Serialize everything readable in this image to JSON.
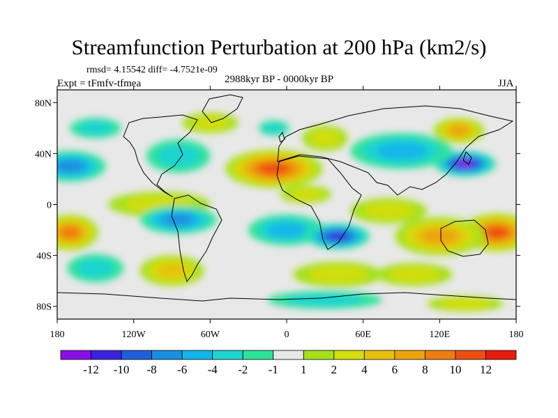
{
  "chart_data": {
    "type": "heatmap",
    "title": "Streamfunction Perturbation at 200 hPa (km2/s)",
    "stats_line": "rmsd= 4.15542 diff= -4.7521e-09",
    "experiment": "Expt = tFmfv-tfmea",
    "period": "2988kyr BP - 0000kyr BP",
    "season": "JJA",
    "units": "km2/s",
    "x_range": [
      -180,
      180
    ],
    "y_range": [
      -90,
      90
    ],
    "x_ticks": [
      {
        "value": -180,
        "label": "180"
      },
      {
        "value": -120,
        "label": "120W"
      },
      {
        "value": -60,
        "label": "60W"
      },
      {
        "value": 0,
        "label": "0"
      },
      {
        "value": 60,
        "label": "60E"
      },
      {
        "value": 120,
        "label": "120E"
      },
      {
        "value": 180,
        "label": "180"
      }
    ],
    "y_ticks": [
      {
        "value": 80,
        "label": "80N"
      },
      {
        "value": 40,
        "label": "40N"
      },
      {
        "value": 0,
        "label": "0"
      },
      {
        "value": -40,
        "label": "40S"
      },
      {
        "value": -80,
        "label": "80S"
      }
    ],
    "colorbar": {
      "colors": [
        "#8a0fe6",
        "#3a24de",
        "#1f5fd9",
        "#1a8ee0",
        "#12b6e8",
        "#1ed4d0",
        "#2ee29a",
        "#e8e8e8",
        "#a6e01a",
        "#d2de0e",
        "#e6c20e",
        "#eca30e",
        "#ee7d10",
        "#ec4e10",
        "#e61c0c"
      ],
      "labels": [
        "-12",
        "-10",
        "-8",
        "-6",
        "-4",
        "-2",
        "-1",
        "1",
        "2",
        "4",
        "6",
        "8",
        "10",
        "12"
      ]
    },
    "anomaly_centers": [
      {
        "lon": -10,
        "lat": 28,
        "value": 11,
        "rlon": 38,
        "rlat": 15
      },
      {
        "lon": 140,
        "lat": 32,
        "value": -12,
        "rlon": 24,
        "rlat": 10
      },
      {
        "lon": 90,
        "lat": 42,
        "value": -4,
        "rlon": 40,
        "rlat": 14
      },
      {
        "lon": 135,
        "lat": 58,
        "value": 7,
        "rlon": 20,
        "rlat": 10
      },
      {
        "lon": 30,
        "lat": 52,
        "value": 3,
        "rlon": 18,
        "rlat": 10
      },
      {
        "lon": -85,
        "lat": 38,
        "value": -3,
        "rlon": 25,
        "rlat": 13
      },
      {
        "lon": -170,
        "lat": 30,
        "value": -6,
        "rlon": 28,
        "rlat": 12
      },
      {
        "lon": -60,
        "lat": 64,
        "value": 2.5,
        "rlon": 22,
        "rlat": 8
      },
      {
        "lon": -10,
        "lat": 60,
        "value": -2.5,
        "rlon": 12,
        "rlat": 6
      },
      {
        "lon": -150,
        "lat": 60,
        "value": -2,
        "rlon": 20,
        "rlat": 8
      },
      {
        "lon": -100,
        "lat": 0,
        "value": 3,
        "rlon": 40,
        "rlat": 10
      },
      {
        "lon": -85,
        "lat": -12,
        "value": -6.5,
        "rlon": 30,
        "rlat": 11
      },
      {
        "lon": 0,
        "lat": -20,
        "value": -4.5,
        "rlon": 30,
        "rlat": 12
      },
      {
        "lon": 40,
        "lat": -25,
        "value": -10,
        "rlon": 25,
        "rlat": 10
      },
      {
        "lon": 15,
        "lat": 8,
        "value": 2.5,
        "rlon": 20,
        "rlat": 7
      },
      {
        "lon": -170,
        "lat": -22,
        "value": 9,
        "rlon": 22,
        "rlat": 14
      },
      {
        "lon": 165,
        "lat": -22,
        "value": 10,
        "rlon": 28,
        "rlat": 15
      },
      {
        "lon": 120,
        "lat": -25,
        "value": 6,
        "rlon": 35,
        "rlat": 15
      },
      {
        "lon": 80,
        "lat": -5,
        "value": 3,
        "rlon": 30,
        "rlat": 10
      },
      {
        "lon": -150,
        "lat": -50,
        "value": -3.5,
        "rlon": 22,
        "rlat": 11
      },
      {
        "lon": -90,
        "lat": -52,
        "value": 5,
        "rlon": 25,
        "rlat": 12
      },
      {
        "lon": 40,
        "lat": -55,
        "value": 2.5,
        "rlon": 35,
        "rlat": 10
      },
      {
        "lon": 100,
        "lat": -55,
        "value": 2,
        "rlon": 30,
        "rlat": 9
      },
      {
        "lon": 30,
        "lat": -75,
        "value": -3,
        "rlon": 45,
        "rlat": 7
      },
      {
        "lon": 140,
        "lat": -78,
        "value": 2,
        "rlon": 30,
        "rlat": 6
      }
    ]
  }
}
